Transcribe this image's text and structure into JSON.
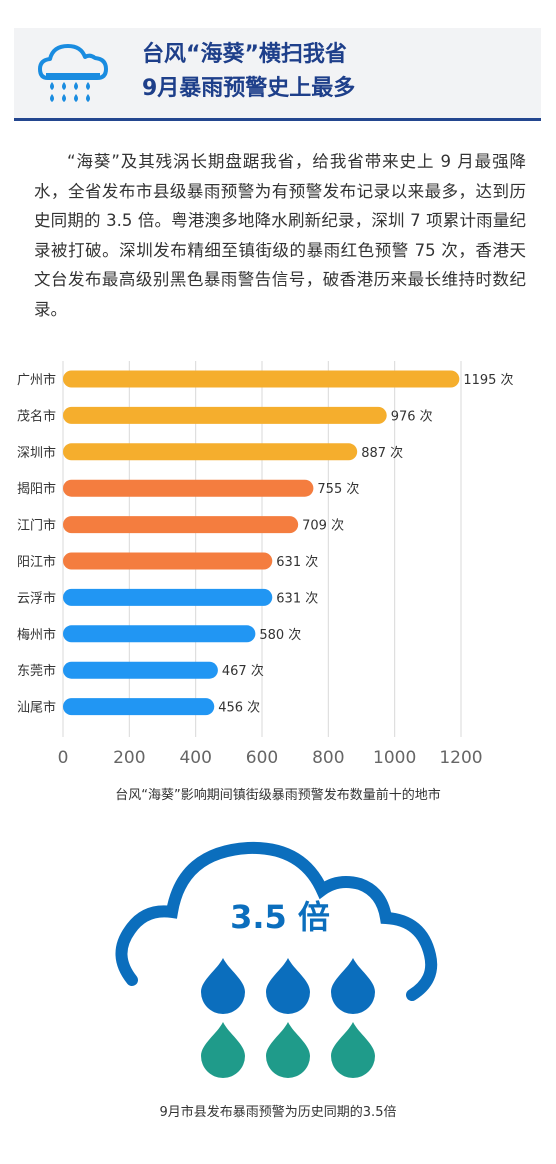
{
  "header": {
    "title_line1": "台风“海葵”横扫我省",
    "title_line2": "9月暴雨预警史上最多",
    "icon": "rain-cloud-icon"
  },
  "paragraph": "“海葵”及其残涡长期盘踞我省，给我省带来史上 9 月最强降水，全省发布市县级暴雨预警为有预警发布记录以来最多，达到历史同期的 3.5 倍。粤港澳多地降水刷新纪录，深圳 7 项累计雨量纪录被打破。深圳发布精细至镇街级的暴雨红色预警 75 次，香港天文台发布最高级别黑色暴雨警告信号，破香港历来最长维持时数纪录。",
  "chart_data": {
    "type": "bar",
    "orientation": "horizontal",
    "categories": [
      "广州市",
      "茂名市",
      "深圳市",
      "揭阳市",
      "江门市",
      "阳江市",
      "云浮市",
      "梅州市",
      "东莞市",
      "汕尾市"
    ],
    "values": [
      1195,
      976,
      887,
      755,
      709,
      631,
      631,
      580,
      467,
      456
    ],
    "value_suffix": " 次",
    "colors": [
      "#f5ae2d",
      "#f5ae2d",
      "#f5ae2d",
      "#f47d3f",
      "#f47d3f",
      "#f47d3f",
      "#2196f3",
      "#2196f3",
      "#2196f3",
      "#2196f3"
    ],
    "xticks": [
      0,
      200,
      400,
      600,
      800,
      1000,
      1200
    ],
    "xlim": [
      0,
      1200
    ],
    "grid": "vertical",
    "title": "台风“海葵”影响期间镇街级暴雨预警发布数量前十的地市"
  },
  "infographic": {
    "value_text": "3.5 倍",
    "caption": "9月市县发布暴雨预警为历史同期的3.5倍",
    "drop_colors": {
      "top": "#0b6ebd",
      "bottom": "#1f9b8a"
    },
    "cloud_color": "#0b6ebd"
  }
}
